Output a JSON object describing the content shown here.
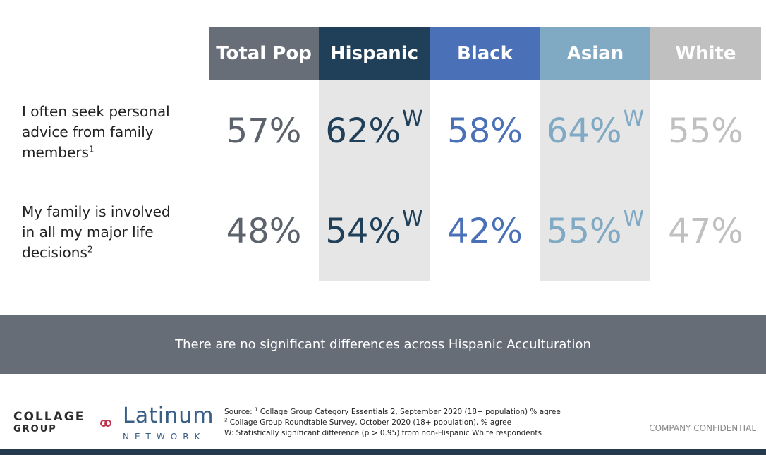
{
  "headers": [
    {
      "label": "Total Pop",
      "bg": "#686e78"
    },
    {
      "label": "Hispanic",
      "bg": "#203f58"
    },
    {
      "label": "Black",
      "bg": "#4a70b8"
    },
    {
      "label": "Asian",
      "bg": "#80a9c4"
    },
    {
      "label": "White",
      "bg": "#c0c0c0"
    }
  ],
  "value_colors": [
    "#5d636d",
    "#203f58",
    "#4a70b8",
    "#80a9c4",
    "#c0c0c0"
  ],
  "rows": [
    {
      "label": "I often seek personal advice from family members",
      "footnote": "1",
      "values": [
        "57%",
        "62%",
        "58%",
        "64%",
        "55%"
      ],
      "sig": [
        "",
        "W",
        "",
        "W",
        ""
      ]
    },
    {
      "label": "My family is involved in all my major life decisions",
      "footnote": "2",
      "values": [
        "48%",
        "54%",
        "42%",
        "55%",
        "47%"
      ],
      "sig": [
        "",
        "W",
        "",
        "W",
        ""
      ]
    }
  ],
  "banner": "There are no significant differences across Hispanic Acculturation",
  "logos": {
    "collage_line1": "COLLAGE",
    "collage_line2": "GROUP",
    "latinum_line1": "Latinum",
    "latinum_line2": "NETWORK"
  },
  "source": {
    "line1_prefix": "Source: ",
    "line1_sup": "1",
    "line1_text": " Collage Group Category Essentials 2, September 2020 (18+ population) % agree",
    "line2_sup": "2",
    "line2_text": " Collage Group Roundtable Survey, October 2020 (18+ population), % agree",
    "line3": "W: Statistically significant difference (p > 0.95) from non-Hispanic White respondents"
  },
  "confidential": "COMPANY CONFIDENTIAL"
}
